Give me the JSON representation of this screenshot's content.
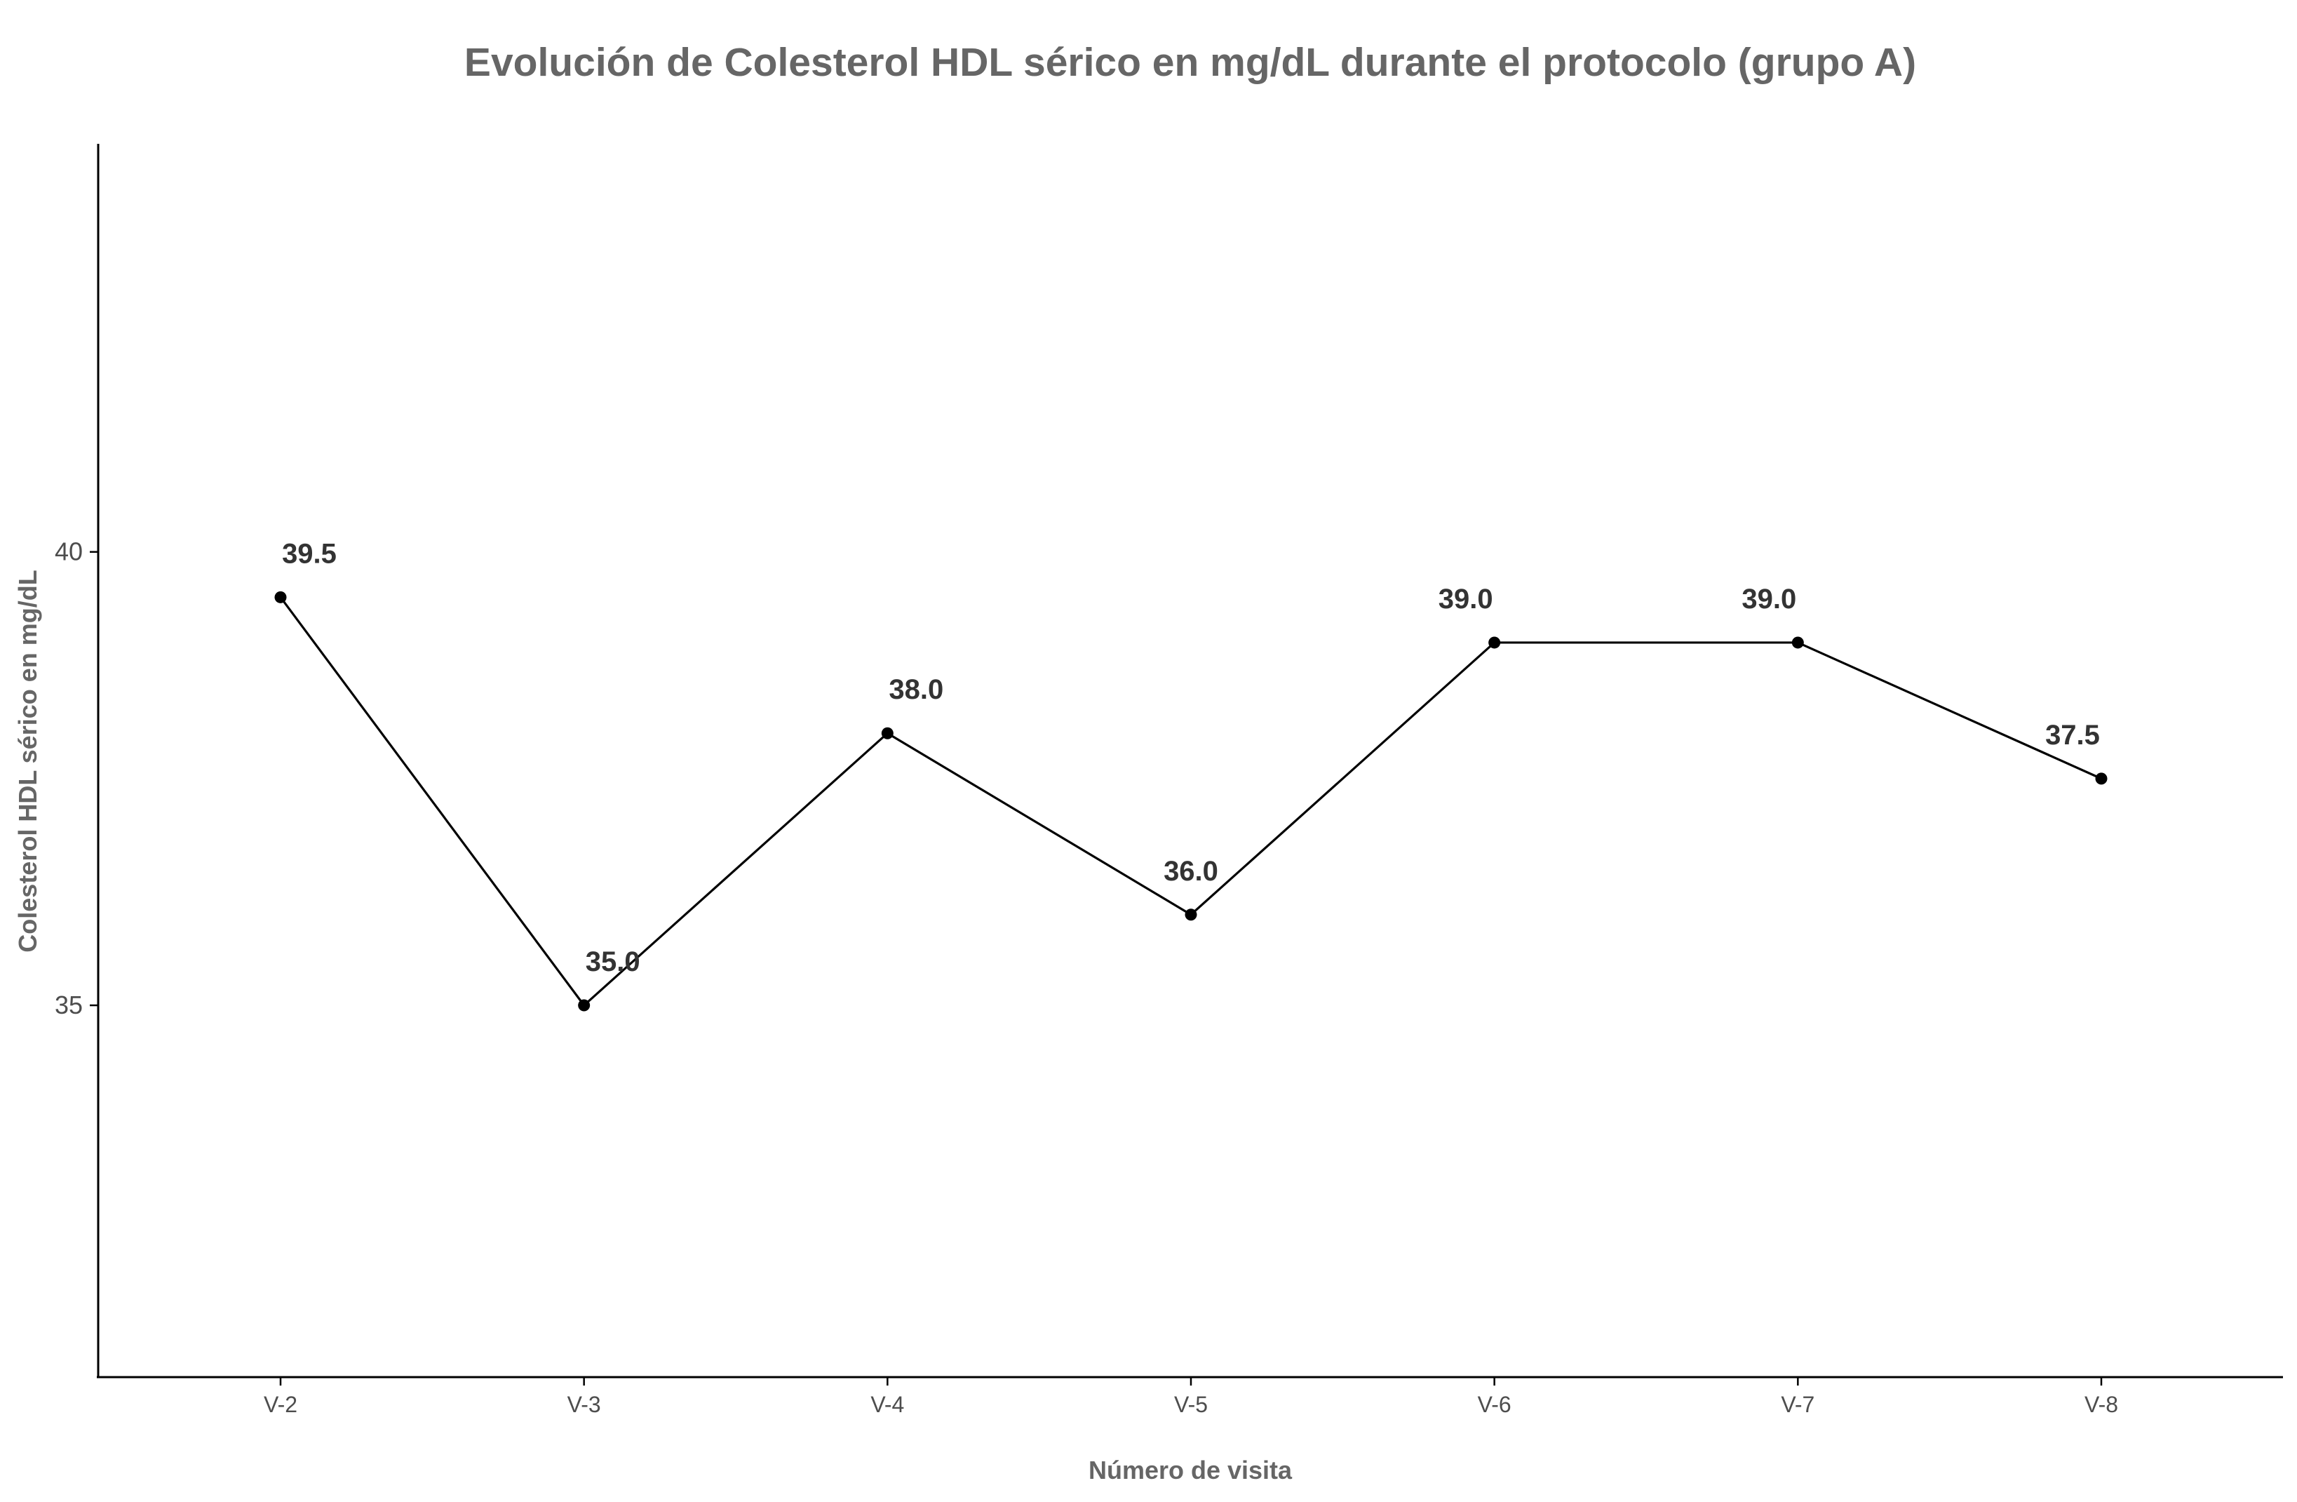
{
  "chart_data": {
    "type": "line",
    "title": "Evolución de Colesterol HDL sérico en mg/dL durante el protocolo (grupo A)",
    "xlabel": "Número de visita",
    "ylabel": "Colesterol HDL sérico en mg/dL",
    "categories": [
      "V-2",
      "V-3",
      "V-4",
      "V-5",
      "V-6",
      "V-7",
      "V-8"
    ],
    "values": [
      39.5,
      35.0,
      38.0,
      36.0,
      39.0,
      39.0,
      37.5
    ],
    "data_labels": [
      "39.5",
      "35.0",
      "38.0",
      "36.0",
      "39.0",
      "39.0",
      "37.5"
    ],
    "yticks": [
      35,
      40
    ],
    "ytick_labels": [
      "35",
      "40"
    ],
    "ylim": [
      30.9,
      44.5
    ],
    "grid": false,
    "legend": "none",
    "colors": {
      "line": "#000000",
      "points": "#000000",
      "title": "#666666",
      "data_labels": "#333333"
    }
  }
}
